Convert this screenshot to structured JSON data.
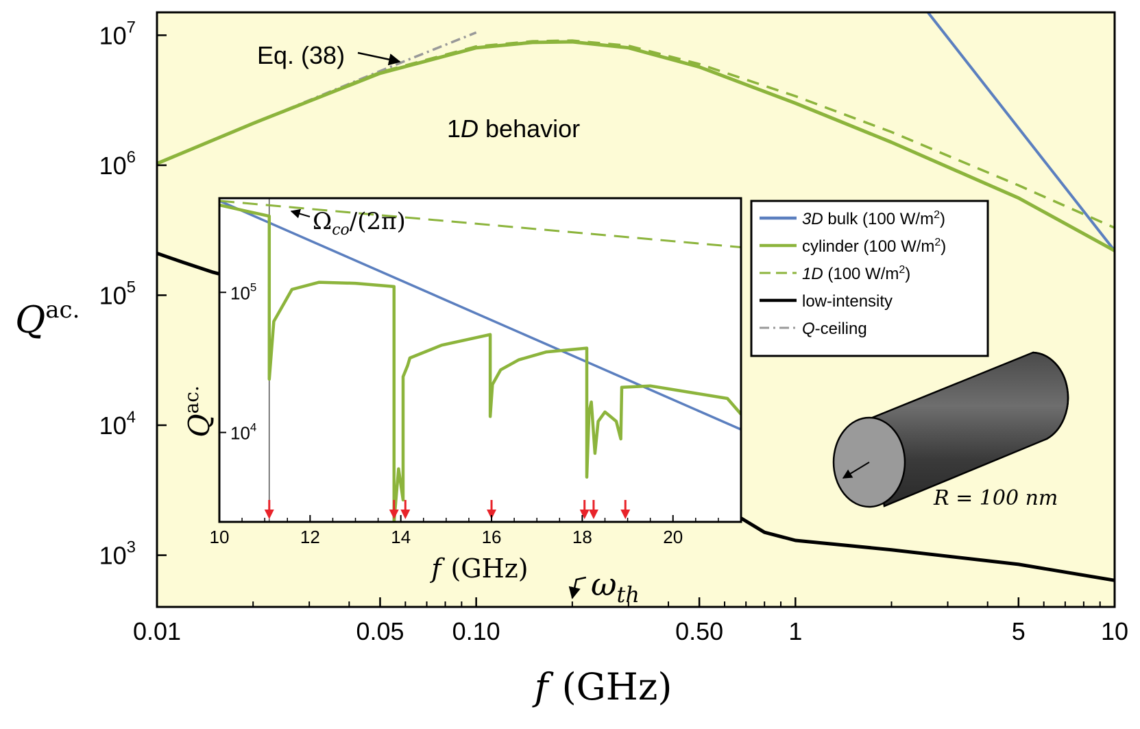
{
  "colors": {
    "background": "#fdfbd6",
    "bulk": "#5b7fbf",
    "cylinder": "#8cb43c",
    "one_d": "#8cb43c",
    "low_intensity": "#000000",
    "q_ceiling": "#999999",
    "arrows": "#e8232a",
    "cylinder_body": "#8a8a8a"
  },
  "main": {
    "xlabel_var": "f",
    "xlabel_unit": "(GHz)",
    "ylabel_var": "Q",
    "ylabel_sup": "ac.",
    "x_ticks": [
      {
        "v": 0.01,
        "label": "0.01"
      },
      {
        "v": 0.05,
        "label": "0.05"
      },
      {
        "v": 0.1,
        "label": "0.10"
      },
      {
        "v": 0.5,
        "label": "0.50"
      },
      {
        "v": 1,
        "label": "1"
      },
      {
        "v": 5,
        "label": "5"
      },
      {
        "v": 10,
        "label": "10"
      }
    ],
    "y_ticks": [
      {
        "v": 1000,
        "mant": "10",
        "exp": "3"
      },
      {
        "v": 10000,
        "mant": "10",
        "exp": "4"
      },
      {
        "v": 100000,
        "mant": "10",
        "exp": "5"
      },
      {
        "v": 1000000,
        "mant": "10",
        "exp": "6"
      },
      {
        "v": 10000000,
        "mant": "10",
        "exp": "7"
      }
    ],
    "eq_label": "Eq. (38)",
    "behavior_pre": "1",
    "behavior_italic": "D",
    "behavior_post": " behavior",
    "omega_var": "ω",
    "omega_sub": "th",
    "radius_label": "R = 100 nm"
  },
  "legend": [
    {
      "key": "bulk",
      "style": "solid",
      "italic": "3D",
      "text": " bulk (100 W/m",
      "sup": "2",
      "tail": ")"
    },
    {
      "key": "cylinder",
      "style": "solid",
      "italic": "",
      "text": "cylinder (100 W/m",
      "sup": "2",
      "tail": ")"
    },
    {
      "key": "one_d",
      "style": "dashed",
      "italic": "1D",
      "text": " (100 W/m",
      "sup": "2",
      "tail": ")"
    },
    {
      "key": "low_intensity",
      "style": "solid",
      "italic": "",
      "text": "low-intensity",
      "sup": "",
      "tail": ""
    },
    {
      "key": "q_ceiling",
      "style": "dashdot",
      "italic": "Q",
      "text": "-ceiling",
      "sup": "",
      "tail": ""
    }
  ],
  "inset": {
    "xlabel_var": "f",
    "xlabel_unit": "(GHz)",
    "ylabel_var": "Q",
    "ylabel_sup": "ac.",
    "cutoff_label": "Ω",
    "cutoff_sub": "co",
    "cutoff_tail": "/(2π)",
    "x_ticks": [
      {
        "v": 10,
        "label": "10"
      },
      {
        "v": 12,
        "label": "12"
      },
      {
        "v": 14,
        "label": "14"
      },
      {
        "v": 16,
        "label": "16"
      },
      {
        "v": 18,
        "label": "18"
      },
      {
        "v": 20,
        "label": "20"
      }
    ],
    "y_ticks": [
      {
        "v": 10000,
        "mant": "10",
        "exp": "4"
      },
      {
        "v": 100000,
        "mant": "10",
        "exp": "5"
      }
    ]
  },
  "chart_data": [
    {
      "type": "line",
      "xscale": "log",
      "yscale": "log",
      "xlim": [
        0.01,
        10
      ],
      "ylim": [
        400,
        15000000
      ],
      "xlabel": "f (GHz)",
      "ylabel": "Q^ac.",
      "legend_position": "right",
      "series": [
        {
          "name": "3D bulk (100 W/m2)",
          "key": "bulk",
          "x": [
            2.6,
            10
          ],
          "y": [
            15000000,
            220000
          ]
        },
        {
          "name": "cylinder (100 W/m2)",
          "key": "cylinder",
          "x": [
            0.01,
            0.02,
            0.05,
            0.1,
            0.15,
            0.2,
            0.3,
            0.5,
            1,
            2,
            5,
            10
          ],
          "y": [
            1030000,
            2100000,
            5100000,
            8000000,
            8800000,
            8900000,
            8000000,
            5700000,
            3000000,
            1500000,
            560000,
            220000
          ]
        },
        {
          "name": "1D (100 W/m2)",
          "key": "one_d",
          "x": [
            0.01,
            0.02,
            0.05,
            0.1,
            0.15,
            0.2,
            0.3,
            0.5,
            1,
            2,
            5,
            10
          ],
          "y": [
            1030000,
            2100000,
            5200000,
            8200000,
            9000000,
            9100000,
            8300000,
            6000000,
            3400000,
            1800000,
            700000,
            330000
          ]
        },
        {
          "name": "low-intensity",
          "key": "low_intensity",
          "x": [
            0.01,
            0.012,
            0.015,
            0.02,
            0.6,
            0.8,
            1,
            2,
            5,
            10
          ],
          "y": [
            210000,
            180000,
            150000,
            125000,
            2300,
            1500,
            1300,
            1100,
            850,
            640
          ]
        },
        {
          "name": "Q-ceiling",
          "key": "q_ceiling",
          "x": [
            0.01,
            0.02,
            0.05,
            0.07,
            0.1
          ],
          "y": [
            1030000,
            2100000,
            5300000,
            7400000,
            10500000
          ]
        }
      ],
      "annotations": [
        "Eq. (38)",
        "1D behavior",
        "ωth",
        "R = 100 nm"
      ],
      "omega_th_x": 0.2
    },
    {
      "type": "line",
      "xscale": "linear",
      "yscale": "log",
      "xlim": [
        10,
        21.5
      ],
      "ylim": [
        2300,
        470000
      ],
      "xlabel": "f (GHz)",
      "ylabel": "Q^ac.",
      "series": [
        {
          "name": "3D bulk (100 W/m2)",
          "key": "bulk",
          "x": [
            10,
            21.5
          ],
          "y": [
            450000,
            10500
          ]
        },
        {
          "name": "1D (100 W/m2)",
          "key": "one_d",
          "x": [
            10,
            21.5
          ],
          "y": [
            450000,
            210000
          ]
        },
        {
          "name": "cylinder (100 W/m2)",
          "key": "cylinder",
          "x": [
            10,
            10.6,
            11.1,
            11.1,
            11.2,
            11.6,
            12.2,
            13,
            13.85,
            13.85,
            13.95,
            14.05,
            14.05,
            14.15,
            14.2,
            14.9,
            15.97,
            15.97,
            16.02,
            16.2,
            16.6,
            17.2,
            18.1,
            18.1,
            18.15,
            18.2,
            18.28,
            18.35,
            18.5,
            18.75,
            18.85,
            18.87,
            19.5,
            21.2,
            21.5
          ],
          "y": [
            420000,
            380000,
            350000,
            24000,
            62000,
            105000,
            118000,
            116000,
            110000,
            2300,
            5500,
            3300,
            25000,
            30000,
            34000,
            42000,
            50000,
            13000,
            22000,
            28000,
            33000,
            37500,
            40000,
            4800,
            14000,
            16500,
            7100,
            12000,
            14000,
            12000,
            9000,
            21000,
            21500,
            17500,
            13500
          ]
        }
      ],
      "cutoff_x": 11.1,
      "marker_x": [
        11.1,
        13.85,
        14.1,
        16.0,
        18.05,
        18.25,
        18.95
      ]
    }
  ]
}
